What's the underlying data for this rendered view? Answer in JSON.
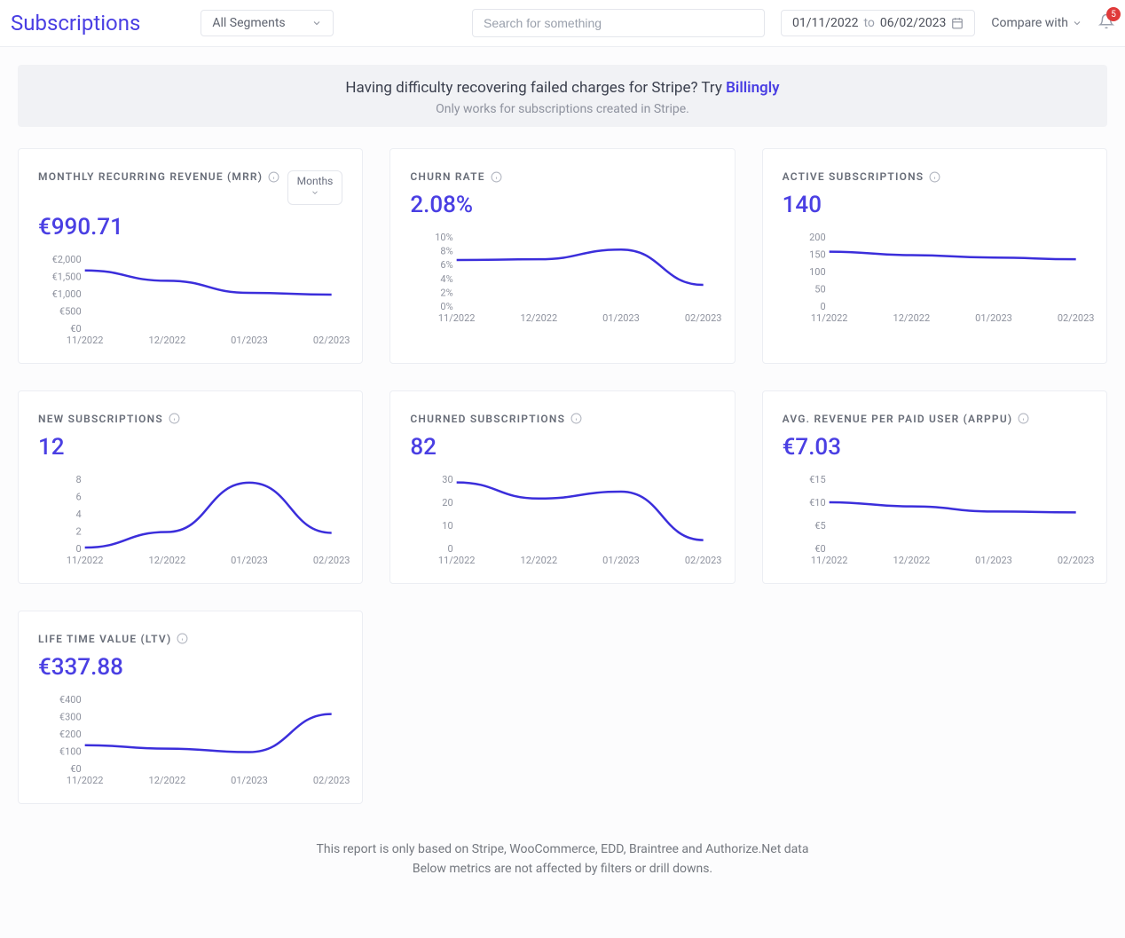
{
  "header": {
    "title": "Subscriptions",
    "segments_label": "All Segments",
    "search_placeholder": "Search for something",
    "date_from": "01/11/2022",
    "date_to_word": "to",
    "date_to": "06/02/2023",
    "compare_label": "Compare with",
    "notification_count": "5"
  },
  "banner": {
    "line1_prefix": "Having difficulty recovering failed charges for Stripe? Try ",
    "line1_link": "Billingly",
    "line2": "Only works for subscriptions created in Stripe."
  },
  "shared": {
    "line_color": "#3b2edb",
    "grid_color": "#eceef3",
    "axis_color": "#8e929e",
    "x_labels": [
      "11/2022",
      "12/2022",
      "01/2023",
      "02/2023"
    ]
  },
  "cards": [
    {
      "id": "mrr",
      "title": "MONTHLY RECURRING REVENUE (MRR)",
      "value": "€990.71",
      "period_label": "Months",
      "chart": {
        "type": "line",
        "y_labels": [
          "€0",
          "€500",
          "€1,000",
          "€1,500",
          "€2,000"
        ],
        "y_min": 0,
        "y_max": 2000,
        "points": [
          1700,
          1400,
          1050,
          1000
        ]
      }
    },
    {
      "id": "churn",
      "title": "CHURN RATE",
      "value": "2.08%",
      "chart": {
        "type": "line",
        "y_labels": [
          "0%",
          "2%",
          "4%",
          "6%",
          "8%",
          "10%"
        ],
        "y_min": 0,
        "y_max": 10,
        "points": [
          6.8,
          6.9,
          8.3,
          3.2
        ]
      }
    },
    {
      "id": "active",
      "title": "ACTIVE SUBSCRIPTIONS",
      "value": "140",
      "chart": {
        "type": "line",
        "y_labels": [
          "0",
          "50",
          "100",
          "150",
          "200"
        ],
        "y_min": 0,
        "y_max": 200,
        "points": [
          160,
          150,
          143,
          138
        ]
      }
    },
    {
      "id": "newsubs",
      "title": "NEW SUBSCRIPTIONS",
      "value": "12",
      "chart": {
        "type": "line",
        "y_labels": [
          "0",
          "2",
          "4",
          "6",
          "8"
        ],
        "y_min": 0,
        "y_max": 8,
        "points": [
          0.2,
          2.0,
          7.7,
          1.9
        ]
      }
    },
    {
      "id": "churned",
      "title": "CHURNED SUBSCRIPTIONS",
      "value": "82",
      "chart": {
        "type": "line",
        "y_labels": [
          "0",
          "10",
          "20",
          "30"
        ],
        "y_min": 0,
        "y_max": 30,
        "points": [
          29,
          22,
          25,
          4
        ]
      }
    },
    {
      "id": "arppu",
      "title": "AVG. REVENUE PER PAID USER (ARPPU)",
      "value": "€7.03",
      "chart": {
        "type": "line",
        "y_labels": [
          "€0",
          "€5",
          "€10",
          "€15"
        ],
        "y_min": 0,
        "y_max": 15,
        "points": [
          10.2,
          9.3,
          8.2,
          8.0
        ]
      }
    },
    {
      "id": "ltv",
      "title": "LIFE TIME VALUE (LTV)",
      "value": "€337.88",
      "chart": {
        "type": "line",
        "y_labels": [
          "€0",
          "€100",
          "€200",
          "€300",
          "€400"
        ],
        "y_min": 0,
        "y_max": 400,
        "points": [
          140,
          120,
          100,
          320
        ]
      }
    }
  ],
  "footer": {
    "line1": "This report is only based on Stripe, WooCommerce, EDD, Braintree and Authorize.Net data",
    "line2": "Below metrics are not affected by filters or drill downs."
  }
}
